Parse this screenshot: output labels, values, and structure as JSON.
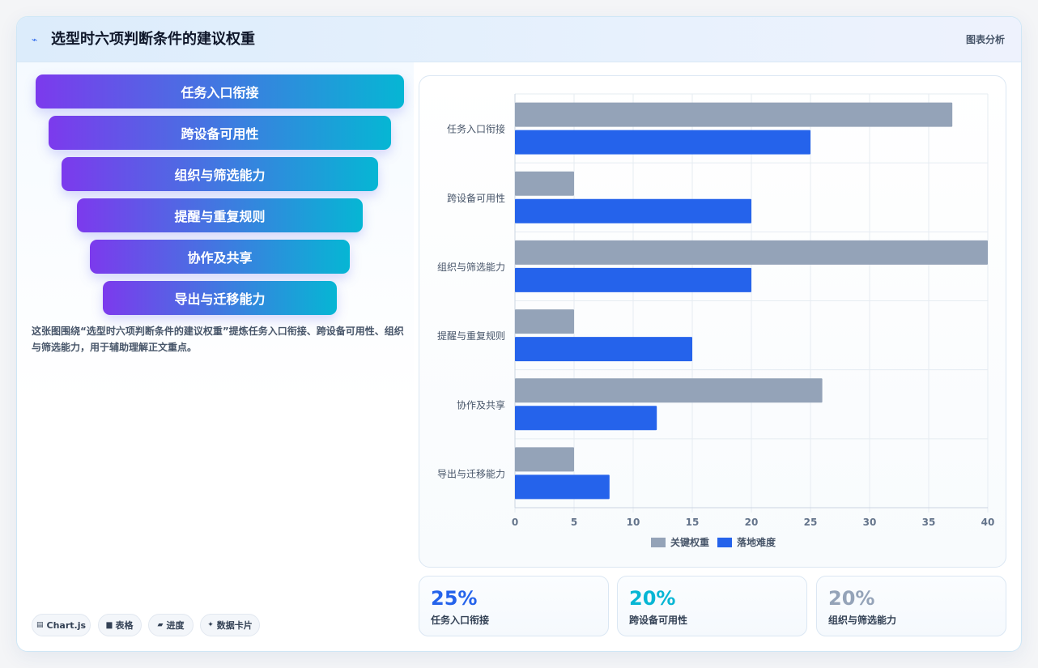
{
  "header": {
    "title": "选型时六项判断条件的建议权重",
    "tag": "图表分析",
    "icon": "pulse-icon"
  },
  "funnel": {
    "items": [
      "任务入口衔接",
      "跨设备可用性",
      "组织与筛选能力",
      "提醒与重复规则",
      "协作及共享",
      "导出与迁移能力"
    ]
  },
  "description": "这张图围绕“选型时六项判断条件的建议权重”提炼任务入口衔接、跨设备可用性、组织与筛选能力，用于辅助理解正文重点。",
  "pills": [
    {
      "icon": "table-icon",
      "glyph": "▤",
      "label": "Chart.js"
    },
    {
      "icon": "grid-icon",
      "glyph": "▆",
      "label": "表格"
    },
    {
      "icon": "progress-icon",
      "glyph": "▰",
      "label": "进度"
    },
    {
      "icon": "sparkle-icon",
      "glyph": "✦",
      "label": "数据卡片"
    }
  ],
  "chart_data": {
    "type": "bar",
    "orientation": "horizontal",
    "categories": [
      "任务入口衔接",
      "跨设备可用性",
      "组织与筛选能力",
      "提醒与重复规则",
      "协作及共享",
      "导出与迁移能力"
    ],
    "series": [
      {
        "name": "关键权重",
        "color": "#94a3b8",
        "values": [
          37,
          5,
          40,
          5,
          26,
          5
        ]
      },
      {
        "name": "落地难度",
        "color": "#2563eb",
        "values": [
          25,
          20,
          20,
          15,
          12,
          8
        ]
      }
    ],
    "xlim": [
      0,
      40
    ],
    "xticks": [
      "0",
      "5",
      "10",
      "15",
      "20",
      "25",
      "30",
      "35",
      "40"
    ],
    "grid": true,
    "legend_position": "bottom"
  },
  "stats": [
    {
      "value": "25%",
      "label": "任务入口衔接",
      "color": "#2563eb"
    },
    {
      "value": "20%",
      "label": "跨设备可用性",
      "color": "#06b6d4"
    },
    {
      "value": "20%",
      "label": "组织与筛选能力",
      "color": "#94a3b8"
    }
  ]
}
